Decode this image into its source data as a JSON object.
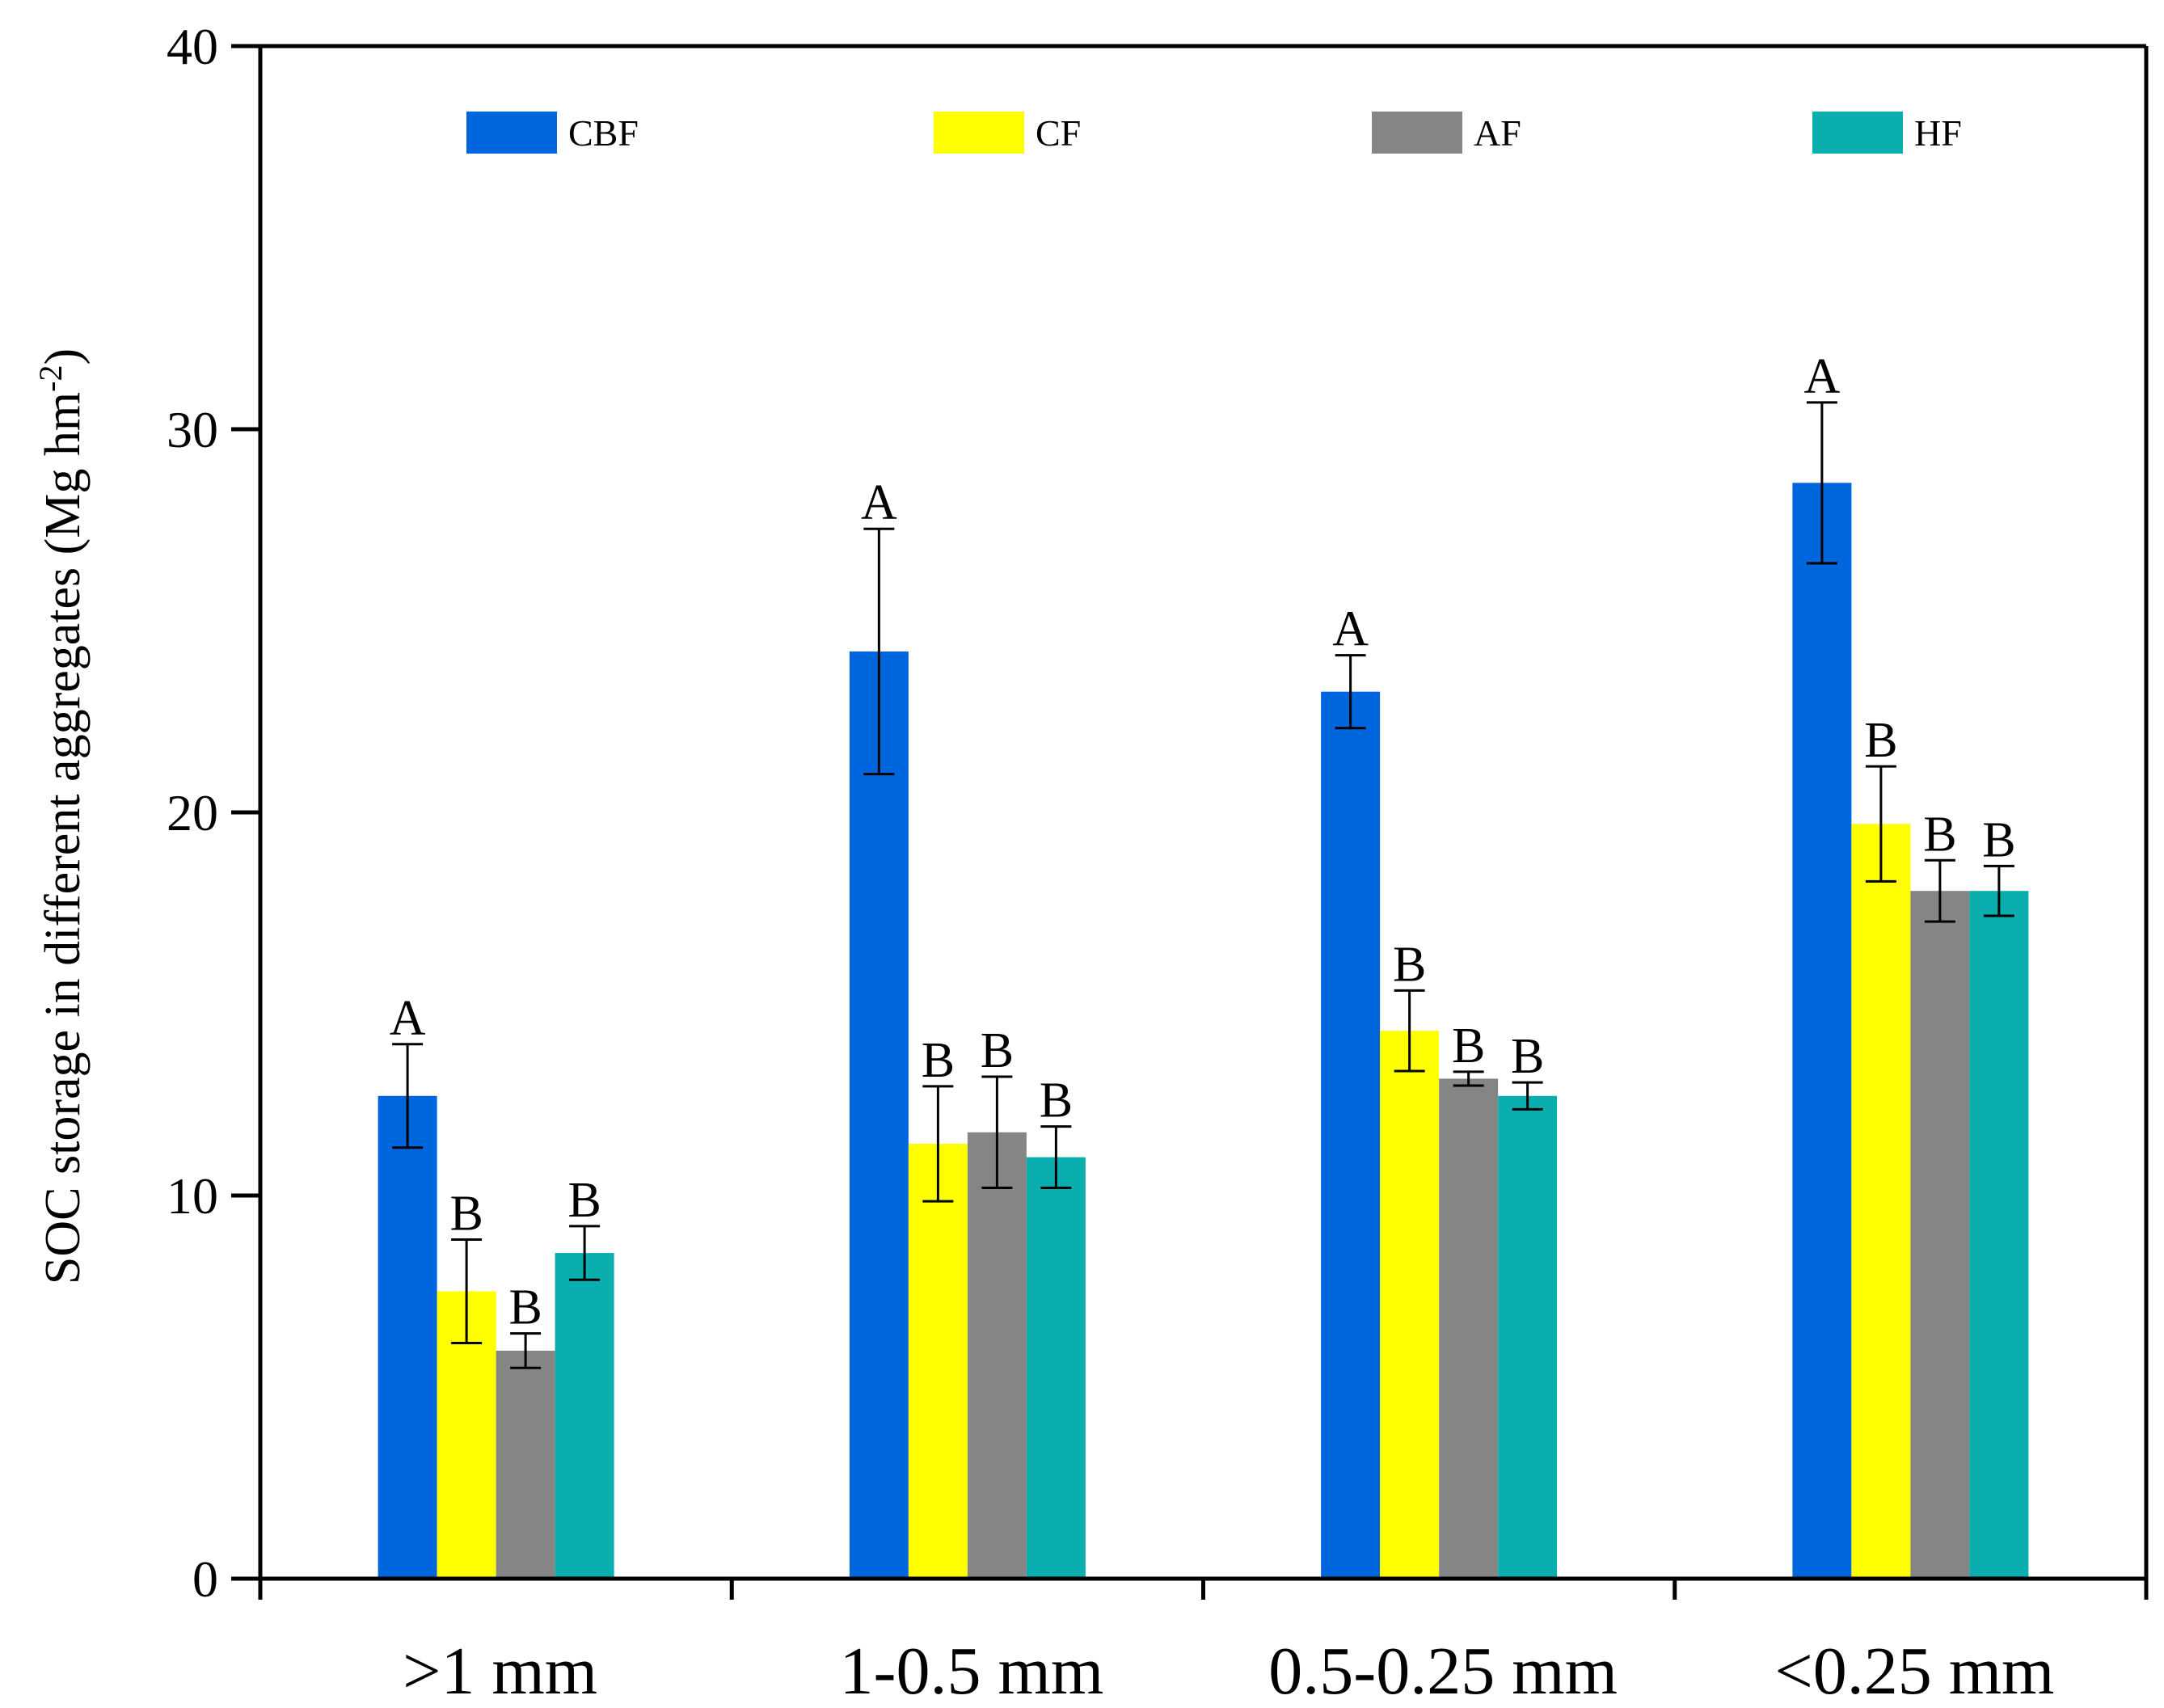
{
  "chart_data": {
    "type": "bar",
    "title": "",
    "xlabel": "",
    "ylabel": "SOC storage in different aggregates (Mg hm",
    "ylabel_superscript": "-2",
    "ylabel_close": ")",
    "ylim": [
      0,
      40
    ],
    "yticks": [
      0,
      10,
      20,
      30,
      40
    ],
    "ytick_labels": [
      "0",
      "10",
      "20",
      "30",
      "40"
    ],
    "categories": [
      ">1 mm",
      "1-0.5 mm",
      "0.5-0.25 mm",
      "<0.25 mm"
    ],
    "legend_position": "top",
    "series": [
      {
        "name": "CBF",
        "color": "#0066dd",
        "values": [
          12.6,
          24.2,
          23.15,
          28.6
        ],
        "errors": [
          1.35,
          3.2,
          0.95,
          2.1
        ],
        "letters": [
          "A",
          "A",
          "A",
          "A"
        ]
      },
      {
        "name": "CF",
        "color": "#ffff00",
        "values": [
          7.5,
          11.35,
          14.3,
          19.7
        ],
        "errors": [
          1.35,
          1.5,
          1.05,
          1.5
        ],
        "letters": [
          "B",
          "B",
          "B",
          "B"
        ]
      },
      {
        "name": "AF",
        "color": "#858585",
        "values": [
          5.95,
          11.65,
          13.05,
          17.95
        ],
        "errors": [
          0.45,
          1.45,
          0.18,
          0.8
        ],
        "letters": [
          "B",
          "B",
          "B",
          "B"
        ]
      },
      {
        "name": "HF",
        "color": "#0aaeae",
        "values": [
          8.5,
          11.0,
          12.6,
          17.95
        ],
        "errors": [
          0.7,
          0.8,
          0.35,
          0.65
        ],
        "letters": [
          "B",
          "B",
          "B",
          "B"
        ]
      }
    ]
  }
}
